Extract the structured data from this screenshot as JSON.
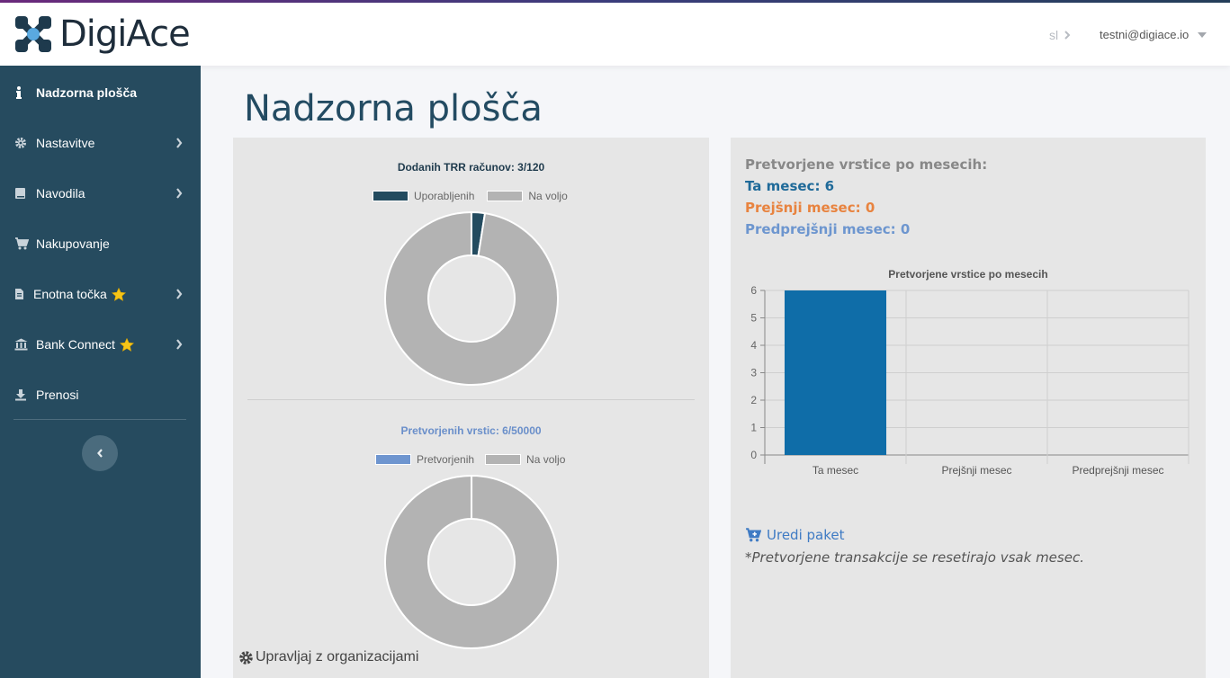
{
  "header": {
    "brand": "DigiAce",
    "language": "sl",
    "user_email": "testni@digiace.io"
  },
  "sidebar": {
    "items": [
      {
        "label": "Nadzorna plošča",
        "icon": "info-icon",
        "active": true,
        "has_submenu": false
      },
      {
        "label": "Nastavitve",
        "icon": "gear-icon",
        "active": false,
        "has_submenu": true
      },
      {
        "label": "Navodila",
        "icon": "book-icon",
        "active": false,
        "has_submenu": true
      },
      {
        "label": "Nakupovanje",
        "icon": "cart-icon",
        "active": false,
        "has_submenu": false
      },
      {
        "label": "Enotna točka",
        "icon": "document-icon",
        "star": true,
        "active": false,
        "has_submenu": true
      },
      {
        "label": "Bank Connect",
        "icon": "bank-icon",
        "star": true,
        "active": false,
        "has_submenu": true
      },
      {
        "label": "Prenosi",
        "icon": "download-icon",
        "active": false,
        "has_submenu": false
      }
    ]
  },
  "page": {
    "title": "Nadzorna plošča"
  },
  "left_panel": {
    "chart1": {
      "title": "Dodanih TRR računov: 3/120",
      "legend": [
        "Uporabljenih",
        "Na voljo"
      ],
      "used": 3,
      "total": 120,
      "colors": {
        "used": "#234b5f",
        "free": "#b3b3b3",
        "title": "#1f3b4d"
      }
    },
    "chart2": {
      "title": "Pretvorjenih vrstic: 6/50000",
      "legend": [
        "Pretvorjenih",
        "Na voljo"
      ],
      "used": 6,
      "total": 50000,
      "colors": {
        "used": "#6e95cf",
        "free": "#b3b3b3",
        "title": "#6a8fca"
      }
    },
    "manage_label": "Upravljaj z organizacijami"
  },
  "right_panel": {
    "stats_heading": "Pretvorjene vrstice po mesecih:",
    "current_label": "Ta mesec: 6",
    "previous_label": "Prejšnji mesec: 0",
    "before_previous_label": "Predprejšnji mesec: 0",
    "edit_label": "Uredi paket",
    "note": "*Pretvorjene transakcije se resetirajo vsak mesec."
  },
  "chart_data": {
    "type": "bar",
    "title": "Pretvorjene vrstice po mesecih",
    "categories": [
      "Ta mesec",
      "Prejšnji mesec",
      "Predprejšnji mesec"
    ],
    "values": [
      6,
      0,
      0
    ],
    "ylim": [
      0,
      6
    ],
    "yticks": [
      0,
      1,
      2,
      3,
      4,
      5,
      6
    ],
    "grid": true,
    "bar_color": "#0f6da8"
  },
  "colors": {
    "sidebar": "#264b5f",
    "title": "#234b62",
    "panel": "#e6e6e6"
  }
}
